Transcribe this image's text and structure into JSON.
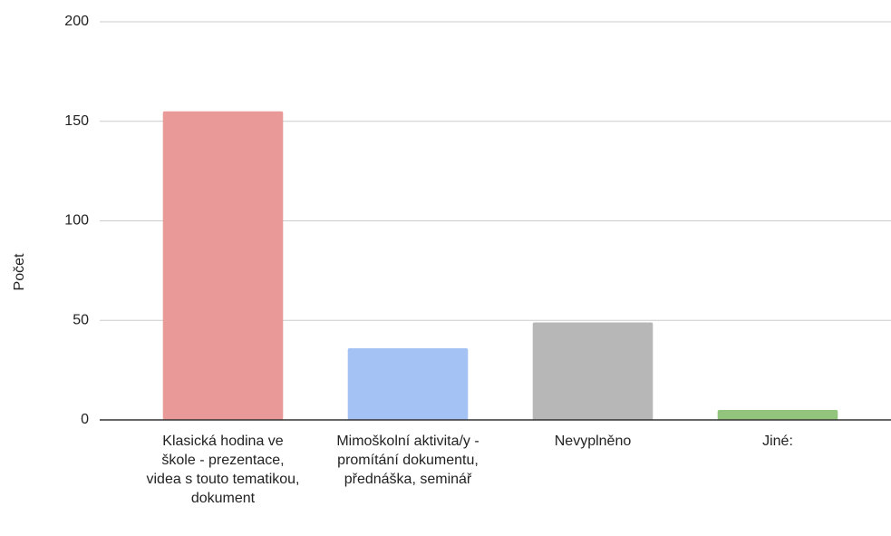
{
  "chart_data": {
    "type": "bar",
    "y_label": "Počet",
    "categories": [
      "Klasická hodina ve škole - prezentace, videa s touto tematikou, dokument",
      "Mimoškolní aktivita/y - promítání dokumentu, přednáška, seminář",
      "Nevyplněno",
      "Jiné:"
    ],
    "values": [
      155,
      36,
      49,
      5
    ],
    "colors": [
      "#ea9999",
      "#a4c2f4",
      "#b7b7b7",
      "#93c47d"
    ],
    "ylim": [
      0,
      200
    ],
    "yticks": [
      0,
      50,
      100,
      150,
      200
    ],
    "grid": true
  }
}
